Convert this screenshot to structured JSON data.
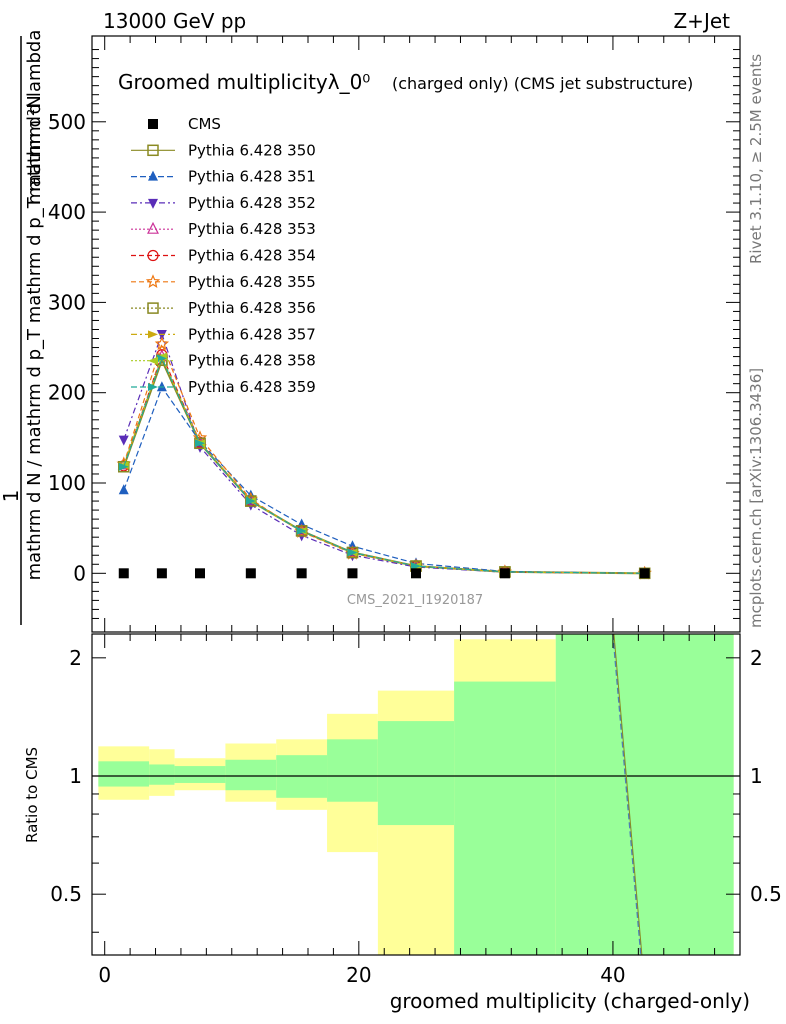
{
  "header": {
    "left": "13000 GeV pp",
    "right": "Z+Jet"
  },
  "side": {
    "rivet": "Rivet 3.1.10, ≥ 2.5M events",
    "mcplots": "mcplots.cern.ch [arXiv:1306.3436]"
  },
  "chart_data": [
    {
      "type": "line",
      "panel": "main",
      "title": "Groomed multiplicityλ_0⁰",
      "title_suffix": "(charged only) (CMS jet substructure)",
      "ylabel_top": "1",
      "ylabel_num": "mathrm d²N",
      "ylabel_den": "mathrm d N / mathrm d p_T mathrm d p_T mathrm d lambda",
      "watermark": "CMS_2021_I1920187",
      "xlim": [
        -1,
        50
      ],
      "ylim": [
        -65,
        595
      ],
      "yticks": [
        0,
        100,
        200,
        300,
        400,
        500
      ],
      "x": [
        1.5,
        4.5,
        7.5,
        11.5,
        15.5,
        19.5,
        24.5,
        31.5,
        42.5
      ],
      "data_series": {
        "name": "CMS",
        "color": "#000000",
        "values": [
          0,
          0,
          0,
          0,
          0,
          0,
          0,
          0,
          0
        ]
      },
      "series": [
        {
          "name": "Pythia 6.428 350",
          "color": "#8a8a22",
          "dash": "",
          "marker": "square-open",
          "values": [
            118,
            236,
            144,
            80,
            47,
            23,
            8,
            1.5,
            0
          ]
        },
        {
          "name": "Pythia 6.428 351",
          "color": "#1f5fbf",
          "dash": "6,3",
          "marker": "triangle-up",
          "values": [
            92,
            206,
            146,
            86,
            54,
            30,
            11,
            2,
            0
          ]
        },
        {
          "name": "Pythia 6.428 352",
          "color": "#5a2db8",
          "dash": "6,3,2,3",
          "marker": "triangle-down",
          "values": [
            148,
            265,
            140,
            76,
            42,
            20,
            7,
            1.2,
            0
          ]
        },
        {
          "name": "Pythia 6.428 353",
          "color": "#cc3399",
          "dash": "2,2",
          "marker": "triangle-up-open",
          "values": [
            120,
            240,
            144,
            80,
            47,
            23,
            8,
            1.5,
            0
          ]
        },
        {
          "name": "Pythia 6.428 354",
          "color": "#dd1111",
          "dash": "5,3",
          "marker": "circle-open",
          "values": [
            119,
            242,
            145,
            80,
            47,
            23,
            8,
            1.5,
            0
          ]
        },
        {
          "name": "Pythia 6.428 355",
          "color": "#ee7711",
          "dash": "5,3",
          "marker": "star-open",
          "values": [
            121,
            254,
            150,
            82,
            46,
            22,
            8,
            1.4,
            0
          ]
        },
        {
          "name": "Pythia 6.428 356",
          "color": "#888822",
          "dash": "2,2",
          "marker": "square-open",
          "values": [
            118,
            236,
            144,
            80,
            47,
            23,
            8,
            1.5,
            0
          ]
        },
        {
          "name": "Pythia 6.428 357",
          "color": "#ccaa11",
          "dash": "6,3,2,3",
          "marker": "tri-right",
          "values": [
            119,
            238,
            145,
            80,
            47,
            23,
            8,
            1.5,
            0
          ]
        },
        {
          "name": "Pythia 6.428 358",
          "color": "#aacc22",
          "dash": "2,2",
          "marker": "tri-left",
          "values": [
            120,
            240,
            144,
            80,
            47,
            23,
            8,
            1.5,
            0
          ]
        },
        {
          "name": "Pythia 6.428 359",
          "color": "#22aa99",
          "dash": "6,3",
          "marker": "tri-right",
          "values": [
            118,
            238,
            144,
            80,
            47,
            23,
            8,
            1.5,
            0
          ]
        }
      ]
    },
    {
      "type": "area",
      "panel": "ratio",
      "ylabel": "Ratio to CMS",
      "xlabel": "groomed multiplicity (charged-only)",
      "xlim": [
        -1,
        50
      ],
      "ylim": [
        0.35,
        2.3
      ],
      "xticks": [
        0,
        20,
        40
      ],
      "yticks": [
        0.5,
        1,
        2
      ],
      "bin_edges": [
        -0.5,
        3.5,
        5.5,
        9.5,
        13.5,
        17.5,
        21.5,
        27.5,
        35.5,
        49.5
      ],
      "band_inner": [
        [
          0.94,
          1.09
        ],
        [
          0.95,
          1.07
        ],
        [
          0.96,
          1.06
        ],
        [
          0.92,
          1.1
        ],
        [
          0.88,
          1.13
        ],
        [
          0.86,
          1.24
        ],
        [
          0.75,
          1.38
        ],
        [
          0.0,
          1.74
        ],
        [
          0.0,
          2.5
        ]
      ],
      "band_outer": [
        [
          0.87,
          1.19
        ],
        [
          0.89,
          1.17
        ],
        [
          0.92,
          1.11
        ],
        [
          0.86,
          1.21
        ],
        [
          0.82,
          1.24
        ],
        [
          0.64,
          1.44
        ],
        [
          0.35,
          1.65
        ],
        [
          0.0,
          2.23
        ],
        [
          0.0,
          2.5
        ]
      ],
      "inner_color": "#99ff99",
      "outer_color": "#ffff99",
      "mc_ratio_line": {
        "x": [
          40.0,
          42.2
        ],
        "y": [
          2.3,
          0.35
        ],
        "color": "#4d7fb8"
      }
    }
  ]
}
